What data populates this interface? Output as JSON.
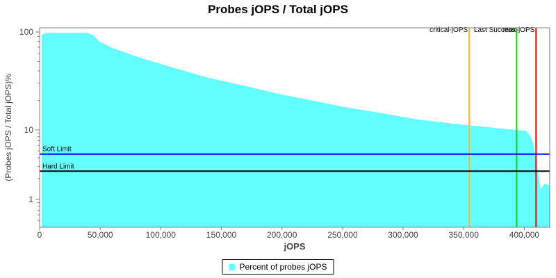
{
  "title": "Probes jOPS / Total jOPS",
  "colors": {
    "area": "#63FFFF",
    "soft_limit_line": "#0000FF",
    "hard_limit_line": "#000000",
    "critical_jops_line": "#FFB428",
    "last_success_line": "#00DC00",
    "max_jops_line": "#FF0000",
    "axis": "#808080",
    "tick_text": "#464646",
    "label_text": "#000000"
  },
  "chart_data": {
    "type": "area",
    "title": "Probes jOPS / Total jOPS",
    "xlabel": "jOPS",
    "ylabel": "(Probes jOPS / Total jOPS)%",
    "x_scale": "linear",
    "y_scale": "log",
    "xlim": [
      0,
      421000
    ],
    "ylim": [
      0.4,
      110
    ],
    "x_ticks": [
      0,
      50000,
      100000,
      150000,
      200000,
      250000,
      300000,
      350000,
      400000
    ],
    "x_tick_labels": [
      "0",
      "50,000",
      "100,000",
      "150,000",
      "200,000",
      "250,000",
      "300,000",
      "350,000",
      "400,000"
    ],
    "y_ticks": [
      100,
      10,
      1
    ],
    "y_tick_labels": [
      "100",
      "10",
      "1"
    ],
    "grid": false,
    "legend_position": "bottom",
    "series": [
      {
        "name": "Percent of probes jOPS",
        "color": "#63FFFF",
        "points": [
          [
            1700,
            94.0
          ],
          [
            6300,
            98.0
          ],
          [
            39000,
            98.0
          ],
          [
            44000,
            93.0
          ],
          [
            49400,
            80.0
          ],
          [
            60900,
            68.0
          ],
          [
            82100,
            55.0
          ],
          [
            110800,
            43.0
          ],
          [
            139500,
            34.0
          ],
          [
            168200,
            28.4
          ],
          [
            196900,
            23.4
          ],
          [
            225600,
            19.9
          ],
          [
            254300,
            16.9
          ],
          [
            283000,
            14.8
          ],
          [
            311700,
            12.8
          ],
          [
            340400,
            11.6
          ],
          [
            369100,
            10.7
          ],
          [
            397800,
            9.8
          ],
          [
            401200,
            9.7
          ],
          [
            404700,
            8.3
          ],
          [
            407500,
            6.3
          ],
          [
            409800,
            3.5
          ],
          [
            412100,
            2.1
          ],
          [
            413300,
            1.4
          ],
          [
            416700,
            1.7
          ],
          [
            420700,
            1.6
          ]
        ]
      }
    ],
    "vlines": [
      {
        "label": "critical-jOPS",
        "x": 354600,
        "color": "#FFB428"
      },
      {
        "label": "Last Success",
        "x": 393700,
        "color": "#00DC00"
      },
      {
        "label": "max-jOPS",
        "x": 409700,
        "color": "#FF0000"
      }
    ],
    "hlines": [
      {
        "label": "Soft Limit",
        "y": 4.5,
        "color": "#0000FF"
      },
      {
        "label": "Hard Limit",
        "y": 2.55,
        "color": "#000000"
      }
    ]
  },
  "legend": {
    "items": [
      {
        "label": "Percent of probes jOPS",
        "color": "#63FFFF"
      }
    ]
  }
}
